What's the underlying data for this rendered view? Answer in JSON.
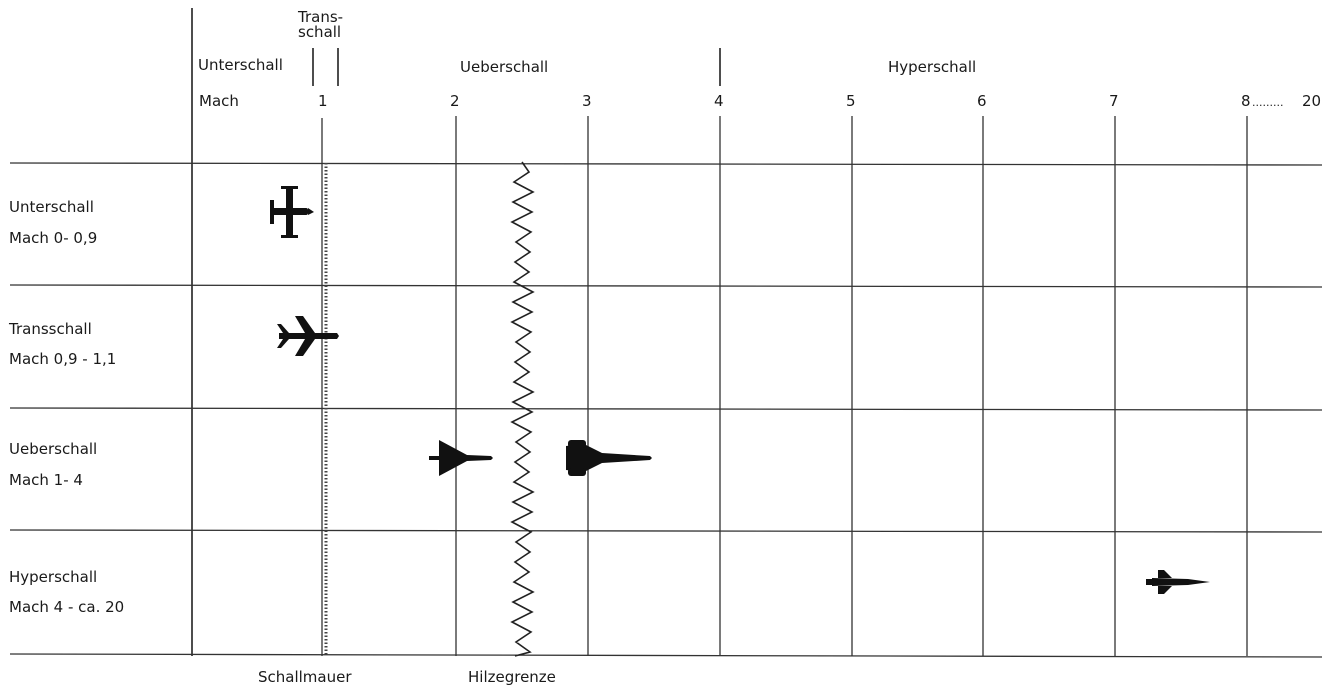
{
  "header": {
    "unterschall": "Unterschall",
    "transschall_line1": "Trans-",
    "transschall_line2": "schall",
    "ueberschall": "Ueberschall",
    "hyperschall": "Hyperschall",
    "mach": "Mach"
  },
  "mach_ticks": [
    "1",
    "2",
    "3",
    "4",
    "5",
    "6",
    "7"
  ],
  "mach_last": "8",
  "mach_dots": ".........",
  "mach_end": "20",
  "rows": [
    {
      "name": "Unterschall",
      "range": "Mach  0- 0,9"
    },
    {
      "name": "Transschall",
      "range": "Mach  0,9 - 1,1"
    },
    {
      "name": "Ueberschall",
      "range": "Mach  1- 4"
    },
    {
      "name": "Hyperschall",
      "range": "Mach  4 - ca. 20"
    }
  ],
  "footer": {
    "schallmauer": "Schallmauer",
    "hitzegrenze": "Hilzegrenze"
  },
  "aircraft": [
    {
      "row": 0,
      "mach": 0.85,
      "icon": "propeller-plane-icon"
    },
    {
      "row": 1,
      "mach": 0.9,
      "icon": "swept-wing-jet-icon"
    },
    {
      "row": 2,
      "mach": 2.0,
      "icon": "delta-wing-jet-icon"
    },
    {
      "row": 2,
      "mach": 3.0,
      "icon": "mach3-jet-icon"
    },
    {
      "row": 3,
      "mach": 7.5,
      "icon": "hypersonic-plane-icon"
    }
  ]
}
